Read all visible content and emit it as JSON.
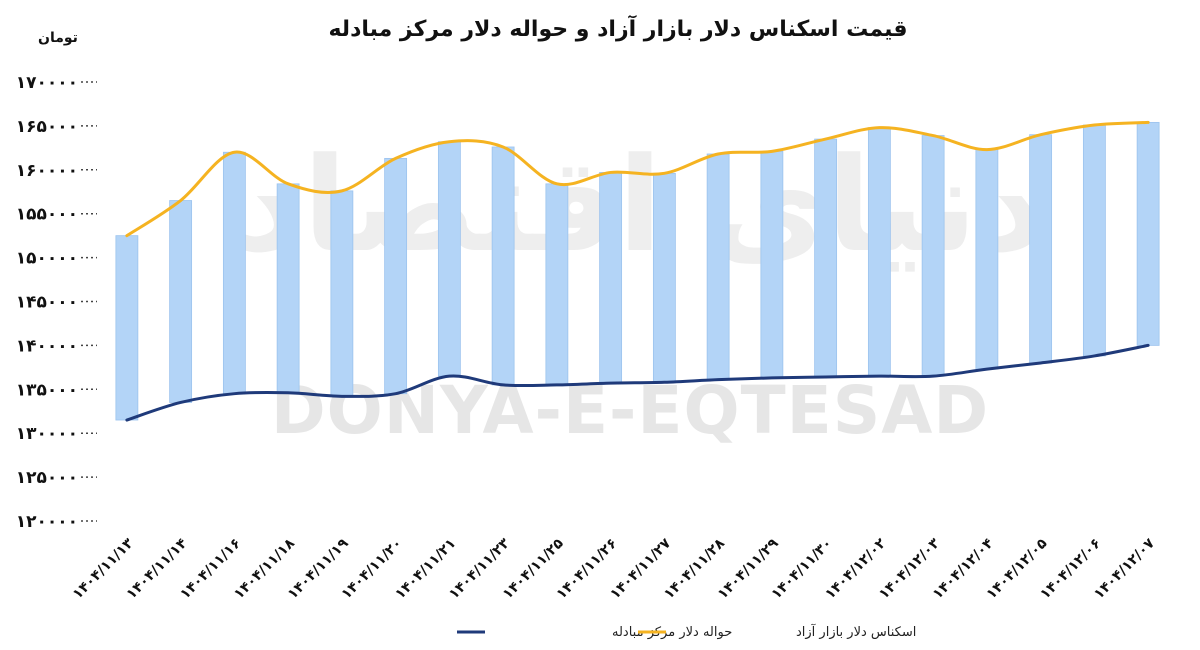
{
  "chart_data": {
    "type": "bar",
    "title": "قیمت اسکناس دلار بازار آزاد و حواله دلار مرکز مبادله",
    "ylabel": "تومان",
    "ylim": [
      120000,
      170000
    ],
    "yticks": [
      "۱۷۰۰۰۰",
      "۱۶۵۰۰۰",
      "۱۶۰۰۰۰",
      "۱۵۵۰۰۰",
      "۱۵۰۰۰۰",
      "۱۴۵۰۰۰",
      "۱۴۰۰۰۰",
      "۱۳۵۰۰۰",
      "۱۳۰۰۰۰",
      "۱۲۵۰۰۰",
      "۱۲۰۰۰۰"
    ],
    "ytick_values": [
      170000,
      165000,
      160000,
      155000,
      150000,
      145000,
      140000,
      135000,
      130000,
      125000,
      120000
    ],
    "categories": [
      "۱۴۰۴/۱۱/۱۳",
      "۱۴۰۴/۱۱/۱۴",
      "۱۴۰۴/۱۱/۱۶",
      "۱۴۰۴/۱۱/۱۸",
      "۱۴۰۴/۱۱/۱۹",
      "۱۴۰۴/۱۱/۲۰",
      "۱۴۰۴/۱۱/۲۱",
      "۱۴۰۴/۱۱/۲۳",
      "۱۴۰۴/۱۱/۲۵",
      "۱۴۰۴/۱۱/۲۶",
      "۱۴۰۴/۱۱/۲۷",
      "۱۴۰۴/۱۱/۲۸",
      "۱۴۰۴/۱۱/۲۹",
      "۱۴۰۴/۱۱/۳۰",
      "۱۴۰۴/۱۲/۰۲",
      "۱۴۰۴/۱۲/۰۳",
      "۱۴۰۴/۱۲/۰۴",
      "۱۴۰۴/۱۲/۰۵",
      "۱۴۰۴/۱۲/۰۶",
      "۱۴۰۴/۱۲/۰۷"
    ],
    "series": [
      {
        "name": "حواله دلار مرکز مبادله",
        "color": "#1f3a7a",
        "values": [
          131500,
          133500,
          134500,
          134600,
          134200,
          134500,
          136500,
          135500,
          135500,
          135700,
          135800,
          136100,
          136300,
          136400,
          136500,
          136500,
          137300,
          138000,
          138800,
          140000
        ]
      },
      {
        "name": "اسکناس دلار بازار آزاد",
        "color": "#f5b321",
        "values": [
          152500,
          156500,
          162000,
          158400,
          157600,
          161300,
          163200,
          162600,
          158400,
          159700,
          159600,
          161800,
          162100,
          163500,
          164800,
          163900,
          162300,
          164000,
          165100,
          165400
        ]
      }
    ],
    "range_bar_color": "#b3d4f7",
    "grid": false,
    "legend_position": "bottom"
  },
  "watermark": {
    "latin": "DONYA-E-EQTESAD",
    "persian": "دنیای اقتصاد"
  }
}
